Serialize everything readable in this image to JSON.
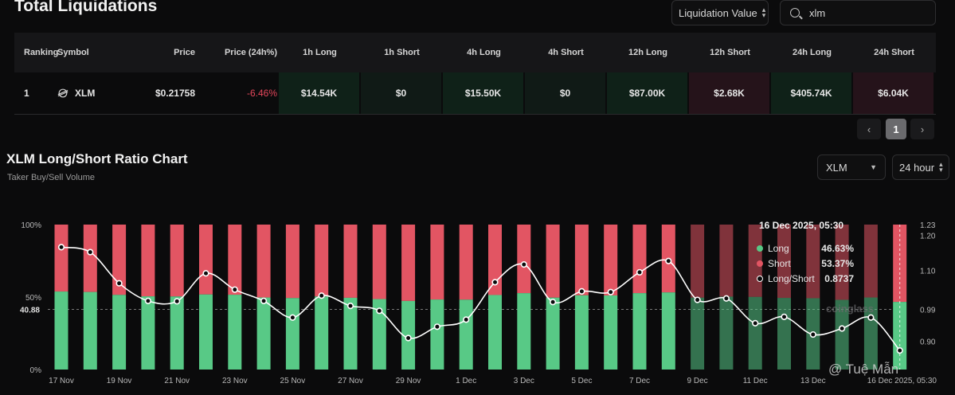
{
  "header": {
    "title": "Total Liquidations"
  },
  "controls": {
    "liquidation_select": "Liquidation Value",
    "search_value": "xlm"
  },
  "table": {
    "columns": [
      "Ranking",
      "Symbol",
      "Price",
      "Price (24h%)",
      "1h Long",
      "1h Short",
      "4h Long",
      "4h Short",
      "12h Long",
      "12h Short",
      "24h Long",
      "24h Short"
    ],
    "row": {
      "rank": "1",
      "symbol": "XLM",
      "price": "$0.21758",
      "change": "-6.46%",
      "h1_long": "$14.54K",
      "h1_short": "$0",
      "h4_long": "$15.50K",
      "h4_short": "$0",
      "h12_long": "$87.00K",
      "h12_short": "$2.68K",
      "h24_long": "$405.74K",
      "h24_short": "$6.04K"
    }
  },
  "pagination": {
    "prev": "‹",
    "current": "1",
    "next": "›"
  },
  "chart_section": {
    "title": "XLM Long/Short Ratio Chart",
    "subtitle": "Taker Buy/Sell Volume",
    "coin_select": "XLM",
    "timeframe_select": "24 hour"
  },
  "tooltip": {
    "date": "16 Dec 2025, 05:30",
    "long_label": "Long",
    "long_value": "46.63%",
    "short_label": "Short",
    "short_value": "53.37%",
    "ratio_label": "Long/Short",
    "ratio_value": "0.8737"
  },
  "watermark": {
    "coinglass": "coinglass",
    "author": "@ Tuệ Mẫn"
  },
  "colors": {
    "long": "#58c986",
    "short": "#e25563",
    "ratio_line": "#ffffff",
    "bg": "#0b0b0c"
  },
  "chart_data": {
    "type": "bar",
    "stacked": true,
    "x": [
      "17 Nov",
      "18 Nov",
      "19 Nov",
      "20 Nov",
      "21 Nov",
      "22 Nov",
      "23 Nov",
      "24 Nov",
      "25 Nov",
      "26 Nov",
      "27 Nov",
      "28 Nov",
      "29 Nov",
      "30 Nov",
      "1 Dec",
      "2 Dec",
      "3 Dec",
      "4 Dec",
      "5 Dec",
      "6 Dec",
      "7 Dec",
      "8 Dec",
      "9 Dec",
      "10 Dec",
      "11 Dec",
      "12 Dec",
      "13 Dec",
      "14 Dec",
      "15 Dec",
      "16 Dec"
    ],
    "x_tick_labels": [
      "17 Nov",
      "19 Nov",
      "21 Nov",
      "23 Nov",
      "25 Nov",
      "27 Nov",
      "29 Nov",
      "1 Dec",
      "3 Dec",
      "5 Dec",
      "7 Dec",
      "9 Dec",
      "11 Dec",
      "13 Dec",
      "16 Dec 2025, 05:30"
    ],
    "series": [
      {
        "name": "Long",
        "axis": "left",
        "values": [
          53.8,
          53.5,
          51.5,
          50.5,
          50.4,
          51.8,
          51.6,
          49.7,
          49.3,
          50.4,
          49.5,
          48.6,
          47.3,
          48.3,
          48.2,
          51.4,
          52.7,
          49.6,
          51.2,
          51.1,
          52.7,
          53.2,
          49.6,
          50.3,
          50.1,
          49.4,
          49.2,
          48.1,
          49.7,
          46.63
        ]
      },
      {
        "name": "Short",
        "axis": "left",
        "values": [
          46.2,
          46.5,
          48.5,
          49.5,
          49.6,
          48.2,
          48.4,
          50.3,
          50.7,
          49.6,
          50.5,
          51.4,
          52.7,
          51.7,
          51.8,
          48.6,
          47.3,
          50.4,
          48.8,
          48.9,
          47.3,
          46.8,
          50.4,
          49.7,
          49.9,
          50.6,
          50.8,
          51.9,
          50.3,
          53.37
        ]
      },
      {
        "name": "Long/Short",
        "type": "line",
        "axis": "right",
        "values": [
          1.166,
          1.152,
          1.064,
          1.014,
          1.013,
          1.092,
          1.046,
          1.014,
          0.967,
          1.029,
          1.0,
          0.986,
          0.909,
          0.941,
          0.961,
          1.067,
          1.117,
          1.011,
          1.041,
          1.039,
          1.095,
          1.127,
          1.017,
          1.021,
          0.951,
          0.969,
          0.919,
          0.936,
          0.967,
          0.8737
        ]
      }
    ],
    "y_left": {
      "ticks": [
        "0%",
        "50%",
        "100%"
      ],
      "range": [
        0,
        100
      ],
      "reference_label": "40.88"
    },
    "y_right": {
      "ticks": [
        "0.90",
        "0.99",
        "1.10",
        "1.20",
        "1.23"
      ],
      "range": [
        0.82,
        1.23
      ]
    },
    "grid": false,
    "legend": "tooltip"
  }
}
